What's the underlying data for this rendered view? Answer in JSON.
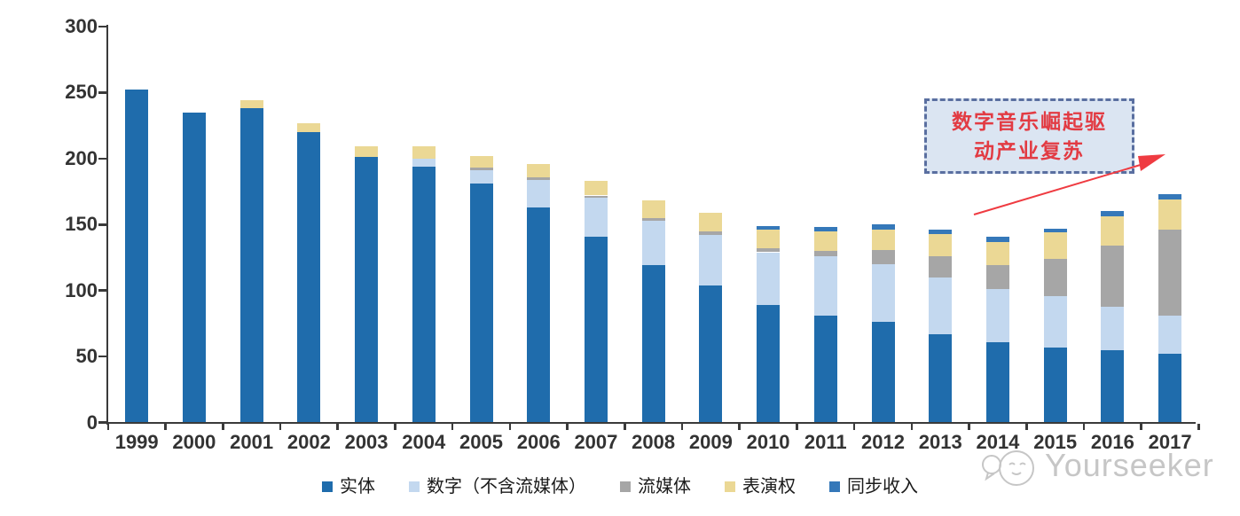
{
  "chart_data": {
    "type": "bar",
    "stacked": true,
    "title": "",
    "xlabel": "",
    "ylabel": "",
    "categories": [
      "1999",
      "2000",
      "2001",
      "2002",
      "2003",
      "2004",
      "2005",
      "2006",
      "2007",
      "2008",
      "2009",
      "2010",
      "2011",
      "2012",
      "2013",
      "2014",
      "2015",
      "2016",
      "2017"
    ],
    "series": [
      {
        "name": "实体",
        "color": "#1F6CAC",
        "values": [
          252,
          235,
          238,
          220,
          201,
          194,
          181,
          163,
          141,
          119,
          104,
          89,
          81,
          76,
          67,
          61,
          57,
          55,
          52
        ]
      },
      {
        "name": "数字（不含流媒体）",
        "color": "#C3D8EF",
        "values": [
          0,
          0,
          0,
          0,
          0,
          6,
          10,
          21,
          29,
          34,
          38,
          40,
          45,
          44,
          43,
          40,
          39,
          33,
          29
        ]
      },
      {
        "name": "流媒体",
        "color": "#A6A6A6",
        "values": [
          0,
          0,
          0,
          0,
          0,
          0,
          2,
          2,
          2,
          2,
          3,
          3,
          4,
          11,
          16,
          18,
          28,
          46,
          65
        ]
      },
      {
        "name": "表演权",
        "color": "#EBD895",
        "values": [
          0,
          0,
          6,
          7,
          8,
          9,
          9,
          10,
          11,
          13,
          14,
          14,
          15,
          15,
          17,
          18,
          20,
          22,
          23
        ]
      },
      {
        "name": "同步收入",
        "color": "#3578B9",
        "values": [
          0,
          0,
          0,
          0,
          0,
          0,
          0,
          0,
          0,
          0,
          0,
          3,
          3,
          4,
          3,
          4,
          3,
          4,
          4
        ]
      }
    ],
    "ylim": [
      0,
      300
    ],
    "yticks": [
      0,
      50,
      100,
      150,
      200,
      250,
      300
    ],
    "grid": false,
    "legend_position": "bottom"
  },
  "annotation": {
    "line1": "数字音乐崛起驱",
    "line2": "动产业复苏",
    "box_fill": "#DBE5F2",
    "border_color": "#5A6FA0",
    "text_color": "#E23B43",
    "arrow_color": "#EF3B41"
  },
  "watermark": {
    "text": "Yourseeker"
  }
}
